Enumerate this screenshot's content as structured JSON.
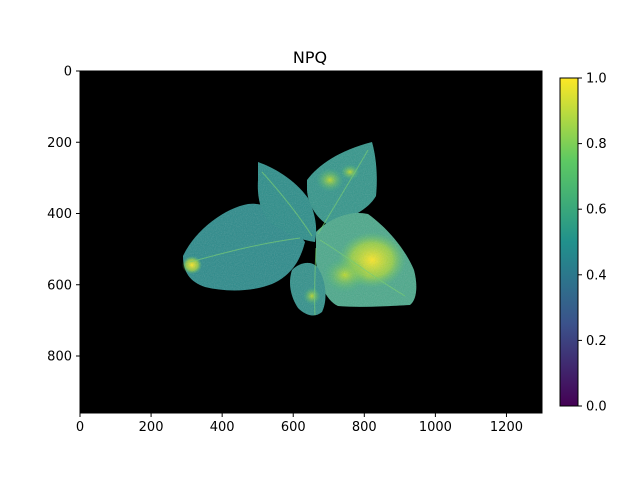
{
  "title": "NPQ",
  "image": {
    "description_color_map": "viridis",
    "x_range": [
      0,
      1300
    ],
    "y_range": [
      0,
      960
    ],
    "y_inverted": true,
    "x_ticks": [
      0,
      200,
      400,
      600,
      800,
      1000,
      1200
    ],
    "y_ticks": [
      0,
      200,
      400,
      600,
      800
    ],
    "background_color": "#000000"
  },
  "colorbar": {
    "range": [
      0.0,
      1.0
    ],
    "ticks": [
      "0.0",
      "0.2",
      "0.4",
      "0.6",
      "0.8",
      "1.0"
    ],
    "colors": [
      "#440154",
      "#3b528b",
      "#21918c",
      "#5ec962",
      "#fde725"
    ]
  }
}
